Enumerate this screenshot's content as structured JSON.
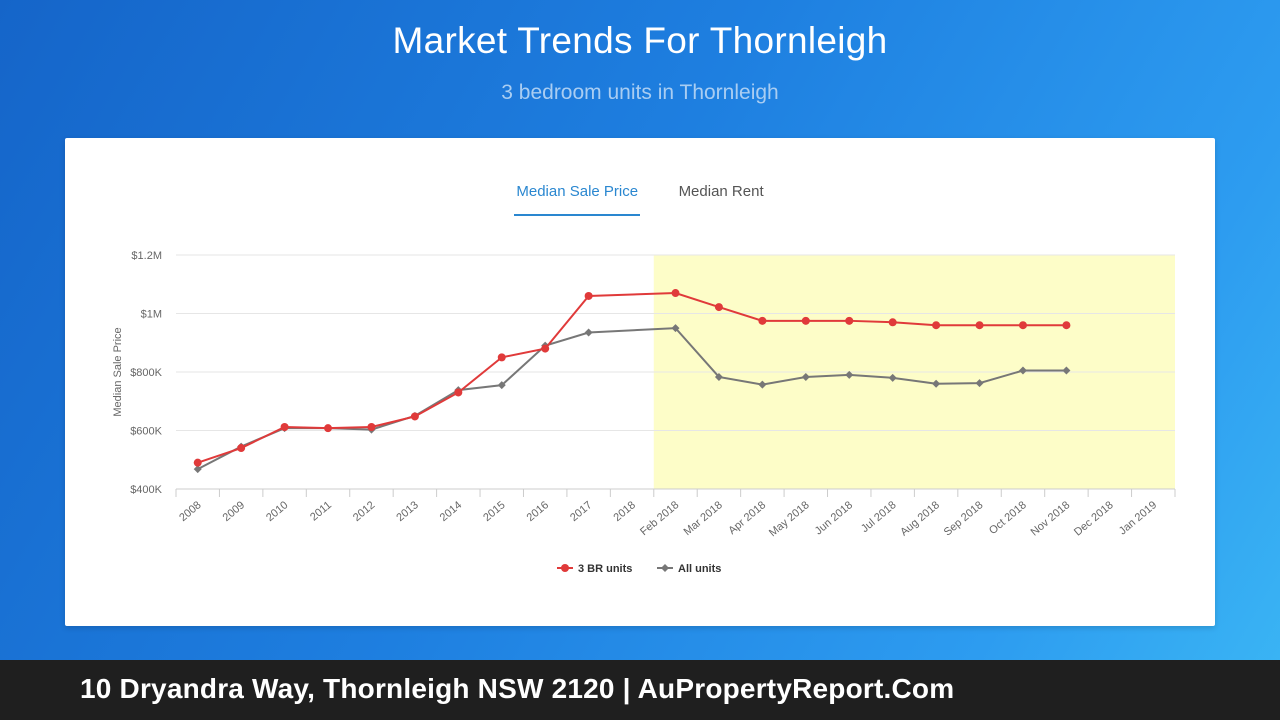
{
  "header": {
    "title": "Market Trends For Thornleigh",
    "subtitle": "3 bedroom units in Thornleigh"
  },
  "tabs": [
    {
      "label": "Median Sale Price",
      "active": true
    },
    {
      "label": "Median Rent",
      "active": false
    }
  ],
  "footer": {
    "text": "10 Dryandra Way, Thornleigh NSW 2120 | AuPropertyReport.Com"
  },
  "chart_data": {
    "type": "line",
    "ylabel": "Median Sale Price",
    "ylim": [
      400000,
      1200000
    ],
    "yticks": [
      400000,
      600000,
      800000,
      1000000,
      1200000
    ],
    "ytick_labels": [
      "$400K",
      "$600K",
      "$800K",
      "$1M",
      "$1.2M"
    ],
    "categories": [
      "2008",
      "2009",
      "2010",
      "2011",
      "2012",
      "2013",
      "2014",
      "2015",
      "2016",
      "2017",
      "2018",
      "Feb 2018",
      "Mar 2018",
      "Apr 2018",
      "May 2018",
      "Jun 2018",
      "Jul 2018",
      "Aug 2018",
      "Sep 2018",
      "Oct 2018",
      "Nov 2018",
      "Dec 2018",
      "Jan 2019"
    ],
    "highlight_range": [
      "Feb 2018",
      "Jan 2019"
    ],
    "highlight_color": "#fdfdc8",
    "grid": true,
    "legend_position": "bottom",
    "series": [
      {
        "name": "3 BR units",
        "color": "#e03a3a",
        "marker": "circle",
        "values": [
          490000,
          540000,
          612000,
          608000,
          612000,
          648000,
          730000,
          850000,
          880000,
          1060000,
          null,
          1070000,
          1022000,
          975000,
          975000,
          975000,
          970000,
          960000,
          960000,
          960000,
          960000,
          null,
          null
        ]
      },
      {
        "name": "All units",
        "color": "#777777",
        "marker": "diamond",
        "values": [
          468000,
          545000,
          608000,
          608000,
          603000,
          650000,
          738000,
          755000,
          890000,
          935000,
          null,
          950000,
          783000,
          757000,
          783000,
          790000,
          780000,
          760000,
          762000,
          805000,
          805000,
          null,
          null
        ]
      }
    ]
  }
}
